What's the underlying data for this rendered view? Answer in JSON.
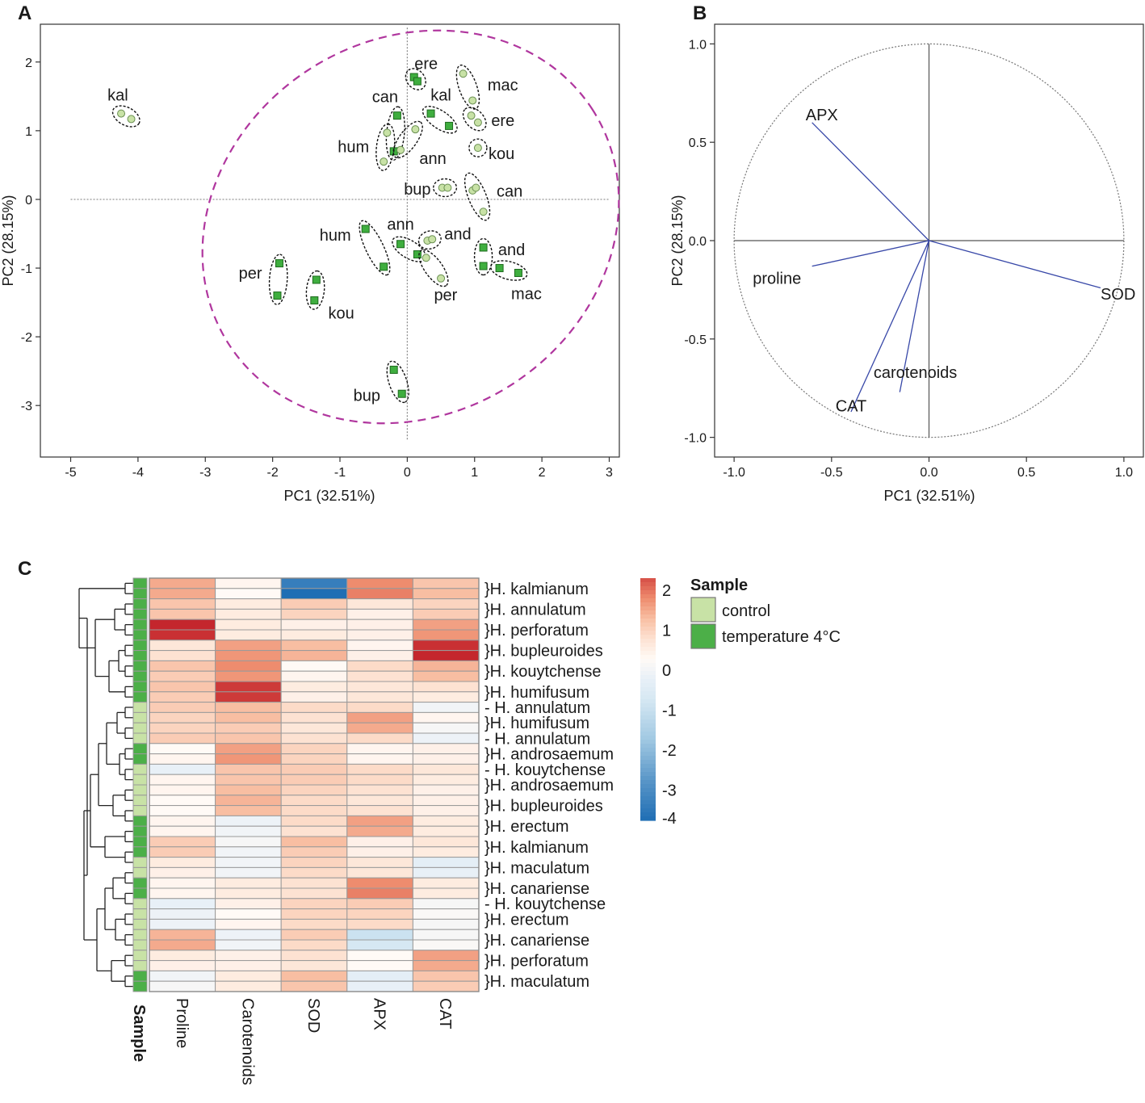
{
  "chart_data": [
    {
      "panel": "A",
      "type": "scatter",
      "xlabel": "PC1 (32.51%)",
      "ylabel": "PC2 (28.15%)",
      "xlim": [
        -5.45,
        3.15
      ],
      "ylim": [
        -3.75,
        2.55
      ],
      "xticks": [
        -5,
        -4,
        -3,
        -2,
        -1,
        0,
        1,
        2,
        3
      ],
      "yticks": [
        -3,
        -2,
        -1,
        0,
        1,
        2
      ],
      "xtick_labels": [
        "-5",
        "-4",
        "-3",
        "-2",
        "-1",
        "0",
        "1",
        "2",
        "3"
      ],
      "ytick_labels": [
        "-3",
        "-2",
        "-1",
        "0",
        "1",
        "2"
      ],
      "series": [
        {
          "name": "control",
          "marker": "circle",
          "color": "#c8e2a6"
        },
        {
          "name": "temperature 4°C",
          "marker": "square",
          "color": "#3fae3f"
        }
      ],
      "groups": [
        {
          "label": "kal",
          "series": "control",
          "points": [
            [
              -4.25,
              1.25
            ],
            [
              -4.1,
              1.17
            ]
          ],
          "label_pos": [
            -4.3,
            1.52
          ]
        },
        {
          "label": "ere",
          "series": "temperature 4°C",
          "points": [
            [
              0.1,
              1.78
            ],
            [
              0.15,
              1.72
            ]
          ],
          "label_pos": [
            0.28,
            1.98
          ]
        },
        {
          "label": "mac",
          "series": "control",
          "points": [
            [
              0.83,
              1.83
            ],
            [
              0.97,
              1.44
            ]
          ],
          "label_pos": [
            1.42,
            1.67
          ]
        },
        {
          "label": "can",
          "series": "temperature 4°C",
          "points": [
            [
              -0.15,
              1.22
            ],
            [
              -0.2,
              0.7
            ]
          ],
          "label_pos": [
            -0.33,
            1.5
          ]
        },
        {
          "label": "kal",
          "series": "temperature 4°C",
          "points": [
            [
              0.35,
              1.25
            ],
            [
              0.62,
              1.07
            ]
          ],
          "label_pos": [
            0.5,
            1.52
          ]
        },
        {
          "label": "ere",
          "series": "control",
          "points": [
            [
              0.95,
              1.22
            ],
            [
              1.05,
              1.12
            ]
          ],
          "label_pos": [
            1.42,
            1.15
          ]
        },
        {
          "label": "hum",
          "series": "control",
          "points": [
            [
              -0.3,
              0.97
            ],
            [
              -0.35,
              0.55
            ]
          ],
          "label_pos": [
            -0.8,
            0.77
          ]
        },
        {
          "label": "ann",
          "series": "control",
          "points": [
            [
              0.12,
              1.02
            ],
            [
              -0.1,
              0.72
            ]
          ],
          "label_pos": [
            0.38,
            0.6
          ]
        },
        {
          "label": "kou",
          "series": "control",
          "points": [
            [
              1.05,
              0.75
            ]
          ],
          "label_pos": [
            1.4,
            0.67
          ]
        },
        {
          "label": "bup",
          "series": "control",
          "points": [
            [
              0.52,
              0.17
            ],
            [
              0.6,
              0.17
            ]
          ],
          "label_pos": [
            0.15,
            0.15
          ]
        },
        {
          "label": "can",
          "series": "control",
          "points": [
            [
              0.97,
              0.13
            ],
            [
              1.02,
              0.17
            ],
            [
              1.13,
              -0.18
            ]
          ],
          "label_pos": [
            1.52,
            0.12
          ]
        },
        {
          "label": "hum",
          "series": "temperature 4°C",
          "points": [
            [
              -0.62,
              -0.43
            ],
            [
              -0.35,
              -0.98
            ]
          ],
          "label_pos": [
            -1.07,
            -0.52
          ]
        },
        {
          "label": "ann",
          "series": "temperature 4°C",
          "points": [
            [
              -0.1,
              -0.65
            ],
            [
              0.15,
              -0.8
            ]
          ],
          "label_pos": [
            -0.1,
            -0.36
          ]
        },
        {
          "label": "and",
          "series": "control",
          "points": [
            [
              0.3,
              -0.6
            ],
            [
              0.37,
              -0.58
            ]
          ],
          "label_pos": [
            0.75,
            -0.5
          ]
        },
        {
          "label": "per",
          "series": "control",
          "points": [
            [
              0.28,
              -0.85
            ],
            [
              0.5,
              -1.15
            ]
          ],
          "label_pos": [
            0.57,
            -1.39
          ]
        },
        {
          "label": "and",
          "series": "temperature 4°C",
          "points": [
            [
              1.13,
              -0.7
            ],
            [
              1.13,
              -0.97
            ]
          ],
          "label_pos": [
            1.55,
            -0.73
          ]
        },
        {
          "label": "mac",
          "series": "temperature 4°C",
          "points": [
            [
              1.37,
              -1.0
            ],
            [
              1.65,
              -1.07
            ]
          ],
          "label_pos": [
            1.77,
            -1.37
          ]
        },
        {
          "label": "per",
          "series": "temperature 4°C",
          "points": [
            [
              -1.9,
              -0.93
            ],
            [
              -1.93,
              -1.4
            ]
          ],
          "label_pos": [
            -2.33,
            -1.07
          ]
        },
        {
          "label": "kou",
          "series": "temperature 4°C",
          "points": [
            [
              -1.35,
              -1.17
            ],
            [
              -1.38,
              -1.47
            ]
          ],
          "label_pos": [
            -0.98,
            -1.65
          ]
        },
        {
          "label": "bup",
          "series": "temperature 4°C",
          "points": [
            [
              -0.2,
              -2.48
            ],
            [
              -0.08,
              -2.83
            ]
          ],
          "label_pos": [
            -0.6,
            -2.85
          ]
        }
      ],
      "confidence_ellipse": {
        "center": [
          0.05,
          -0.4
        ],
        "color": "#b0369e"
      }
    },
    {
      "panel": "B",
      "type": "line",
      "xlabel": "PC1 (32.51%)",
      "ylabel": "PC2 (28.15%)",
      "xlim": [
        -1.1,
        1.1
      ],
      "ylim": [
        -1.1,
        1.1
      ],
      "xticks": [
        -1.0,
        -0.5,
        0.0,
        0.5,
        1.0
      ],
      "yticks": [
        -1.0,
        -0.5,
        0.0,
        0.5,
        1.0
      ],
      "xtick_labels": [
        "-1.0",
        "-0.5",
        "0.0",
        "0.5",
        "1.0"
      ],
      "ytick_labels": [
        "-1.0",
        "-0.5",
        "0.0",
        "0.5",
        "1.0"
      ],
      "loadings": [
        {
          "name": "APX",
          "x": -0.6,
          "y": 0.6,
          "label_pos": [
            -0.55,
            0.64
          ]
        },
        {
          "name": "proline",
          "x": -0.6,
          "y": -0.13,
          "label_pos": [
            -0.78,
            -0.19
          ]
        },
        {
          "name": "SOD",
          "x": 0.88,
          "y": -0.24,
          "label_pos": [
            0.97,
            -0.27
          ]
        },
        {
          "name": "carotenoids",
          "x": -0.15,
          "y": -0.77,
          "label_pos": [
            -0.07,
            -0.67
          ]
        },
        {
          "name": "CAT",
          "x": -0.4,
          "y": -0.87,
          "label_pos": [
            -0.4,
            -0.84
          ]
        }
      ],
      "unit_circle": true
    },
    {
      "panel": "C",
      "type": "heatmap",
      "columns": [
        "Proline",
        "Carotenoids",
        "SOD",
        "APX",
        "CAT"
      ],
      "annotation_title": "Sample",
      "legend": {
        "title": "Sample",
        "entries": [
          {
            "label": "control",
            "color": "#c8e2a6"
          },
          {
            "label": "temperature 4°C",
            "color": "#4caf48"
          }
        ]
      },
      "colorbar": {
        "min": -4,
        "max": 2,
        "ticks": [
          "2",
          "1",
          "0",
          "-1",
          "-2",
          "-3",
          "-4"
        ],
        "high_color": "#c4262d",
        "mid_color": "#ffffff",
        "low_color": "#1f6eb4"
      },
      "rows": [
        {
          "sample": "cold",
          "values": [
            1.2,
            0.1,
            -3.6,
            1.5,
            0.9
          ]
        },
        {
          "sample": "cold",
          "values": [
            1.2,
            0.0,
            -4.0,
            1.6,
            1.0
          ]
        },
        {
          "sample": "cold",
          "values": [
            0.9,
            0.3,
            0.8,
            0.4,
            0.7
          ]
        },
        {
          "sample": "cold",
          "values": [
            0.9,
            0.3,
            0.7,
            0.2,
            0.8
          ]
        },
        {
          "sample": "cold",
          "values": [
            2.4,
            0.3,
            0.2,
            0.2,
            1.3
          ]
        },
        {
          "sample": "cold",
          "values": [
            2.3,
            0.3,
            0.3,
            0.2,
            1.4
          ]
        },
        {
          "sample": "cold",
          "values": [
            0.4,
            1.3,
            1.0,
            0.1,
            2.3
          ]
        },
        {
          "sample": "cold",
          "values": [
            0.5,
            1.4,
            1.1,
            0.2,
            2.4
          ]
        },
        {
          "sample": "cold",
          "values": [
            0.9,
            1.5,
            0.0,
            0.6,
            1.1
          ]
        },
        {
          "sample": "cold",
          "values": [
            0.8,
            1.4,
            0.1,
            0.5,
            1.0
          ]
        },
        {
          "sample": "cold",
          "values": [
            0.9,
            2.2,
            0.3,
            0.4,
            0.5
          ]
        },
        {
          "sample": "cold",
          "values": [
            0.8,
            2.2,
            0.2,
            0.4,
            0.3
          ]
        },
        {
          "sample": "control",
          "values": [
            0.8,
            1.0,
            0.6,
            0.6,
            -0.3
          ]
        },
        {
          "sample": "control",
          "values": [
            0.7,
            1.0,
            0.5,
            1.3,
            0.1
          ]
        },
        {
          "sample": "control",
          "values": [
            0.7,
            0.8,
            0.4,
            1.2,
            -0.2
          ]
        },
        {
          "sample": "control",
          "values": [
            0.8,
            0.9,
            0.5,
            0.6,
            -0.4
          ]
        },
        {
          "sample": "cold",
          "values": [
            0.0,
            1.3,
            0.7,
            0.1,
            0.2
          ]
        },
        {
          "sample": "cold",
          "values": [
            0.1,
            1.4,
            0.7,
            0.1,
            0.2
          ]
        },
        {
          "sample": "control",
          "values": [
            -0.5,
            0.9,
            0.8,
            0.6,
            0.4
          ]
        },
        {
          "sample": "control",
          "values": [
            0.1,
            0.9,
            0.8,
            0.6,
            0.3
          ]
        },
        {
          "sample": "control",
          "values": [
            0.1,
            1.0,
            0.7,
            0.5,
            0.2
          ]
        },
        {
          "sample": "control",
          "values": [
            0.0,
            1.1,
            0.6,
            0.4,
            0.2
          ]
        },
        {
          "sample": "control",
          "values": [
            0.0,
            1.0,
            0.6,
            0.5,
            0.2
          ]
        },
        {
          "sample": "cold",
          "values": [
            0.1,
            -0.4,
            0.6,
            1.3,
            0.3
          ]
        },
        {
          "sample": "cold",
          "values": [
            0.1,
            -0.3,
            0.5,
            1.2,
            0.3
          ]
        },
        {
          "sample": "cold",
          "values": [
            0.8,
            -0.2,
            1.0,
            0.2,
            0.4
          ]
        },
        {
          "sample": "cold",
          "values": [
            0.8,
            -0.3,
            0.8,
            0.2,
            0.3
          ]
        },
        {
          "sample": "control",
          "values": [
            0.3,
            -0.3,
            0.7,
            0.4,
            -0.6
          ]
        },
        {
          "sample": "control",
          "values": [
            0.2,
            -0.3,
            0.6,
            0.4,
            -0.5
          ]
        },
        {
          "sample": "cold",
          "values": [
            0.1,
            0.3,
            0.5,
            1.5,
            0.3
          ]
        },
        {
          "sample": "cold",
          "values": [
            0.1,
            0.3,
            0.5,
            1.6,
            0.3
          ]
        },
        {
          "sample": "control",
          "values": [
            -0.5,
            0.2,
            0.7,
            0.8,
            -0.2
          ]
        },
        {
          "sample": "control",
          "values": [
            -0.4,
            0.0,
            0.7,
            0.7,
            -0.1
          ]
        },
        {
          "sample": "control",
          "values": [
            -0.4,
            0.1,
            0.6,
            0.6,
            -0.2
          ]
        },
        {
          "sample": "control",
          "values": [
            1.1,
            -0.4,
            0.8,
            -1.2,
            -0.2
          ]
        },
        {
          "sample": "control",
          "values": [
            1.2,
            -0.3,
            0.6,
            -1.0,
            -0.1
          ]
        },
        {
          "sample": "control",
          "values": [
            0.3,
            0.2,
            0.5,
            0.0,
            1.3
          ]
        },
        {
          "sample": "control",
          "values": [
            0.2,
            0.2,
            0.4,
            0.0,
            1.2
          ]
        },
        {
          "sample": "cold",
          "values": [
            -0.3,
            0.3,
            1.0,
            -0.6,
            0.9
          ]
        },
        {
          "sample": "cold",
          "values": [
            -0.2,
            0.3,
            0.9,
            -0.5,
            0.8
          ]
        }
      ],
      "row_labels": [
        {
          "text": "}H. kalmianum",
          "rows": [
            0,
            1
          ]
        },
        {
          "text": "}H. annulatum",
          "rows": [
            2,
            3
          ]
        },
        {
          "text": "}H. perforatum",
          "rows": [
            4,
            5
          ]
        },
        {
          "text": "}H. bupleuroides",
          "rows": [
            6,
            7
          ]
        },
        {
          "text": "}H. kouytchense",
          "rows": [
            8,
            9
          ]
        },
        {
          "text": "}H. humifusum",
          "rows": [
            10,
            11
          ]
        },
        {
          "text": "- H. annulatum",
          "rows": [
            12,
            12
          ]
        },
        {
          "text": "}H. humifusum",
          "rows": [
            13,
            14
          ]
        },
        {
          "text": "- H. annulatum",
          "rows": [
            15,
            15
          ]
        },
        {
          "text": "}H. androsaemum",
          "rows": [
            16,
            17
          ]
        },
        {
          "text": "- H. kouytchense",
          "rows": [
            18,
            18
          ]
        },
        {
          "text": "}H. androsaemum",
          "rows": [
            19,
            20
          ]
        },
        {
          "text": "}H. bupleuroides",
          "rows": [
            21,
            22
          ]
        },
        {
          "text": "}H. erectum",
          "rows": [
            23,
            24
          ]
        },
        {
          "text": "}H. kalmianum",
          "rows": [
            25,
            26
          ]
        },
        {
          "text": "}H. maculatum",
          "rows": [
            27,
            28
          ]
        },
        {
          "text": "}H. canariense",
          "rows": [
            29,
            30
          ]
        },
        {
          "text": "- H. kouytchense",
          "rows": [
            31,
            31
          ]
        },
        {
          "text": "}H. erectum",
          "rows": [
            32,
            33
          ]
        },
        {
          "text": "}H. canariense",
          "rows": [
            34,
            35
          ]
        },
        {
          "text": "}H. perforatum",
          "rows": [
            36,
            37
          ]
        },
        {
          "text": "}H. maculatum",
          "rows": [
            38,
            39
          ]
        }
      ]
    }
  ],
  "panels": {
    "a": "A",
    "b": "B",
    "c": "C"
  },
  "colors": {
    "control": "#c8e2a6",
    "cold": "#4caf48",
    "ellipse": "#b0369e",
    "loading": "#3848a8"
  }
}
